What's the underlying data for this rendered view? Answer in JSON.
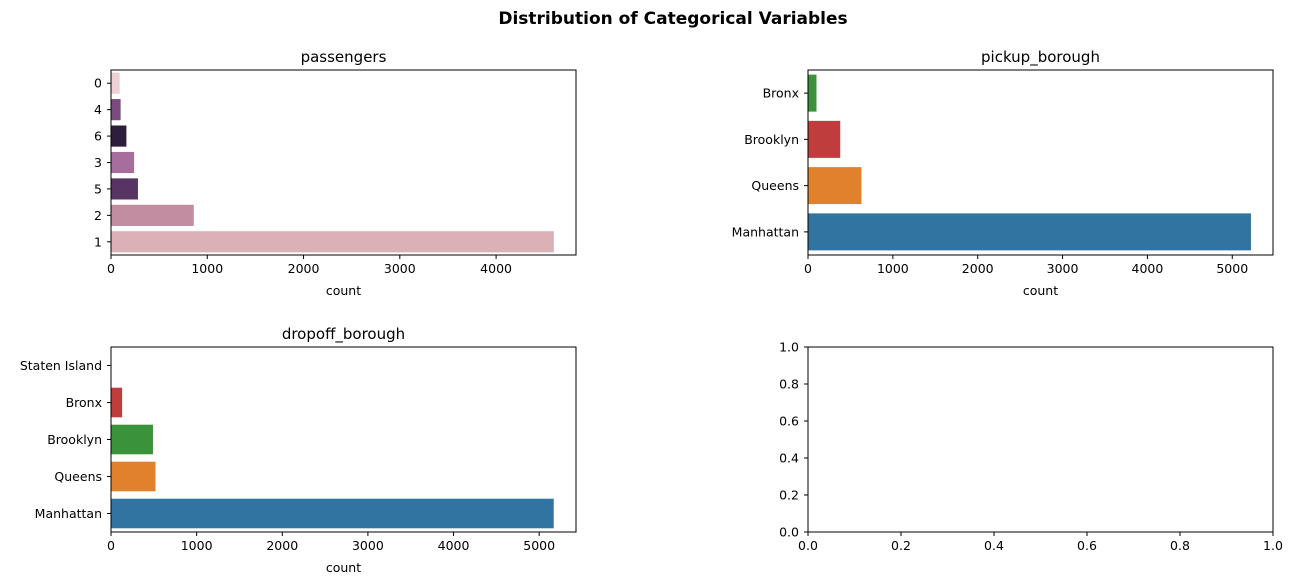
{
  "figure": {
    "title": "Distribution of Categorical Variables"
  },
  "chart_data": [
    {
      "type": "bar",
      "orientation": "horizontal",
      "title": "passengers",
      "xlabel": "count",
      "ylabel": "",
      "categories": [
        "0",
        "4",
        "6",
        "3",
        "5",
        "2",
        "1"
      ],
      "values": [
        90,
        100,
        160,
        240,
        280,
        860,
        4600
      ],
      "colors": [
        "#ecd0d3",
        "#7a4b7e",
        "#2e1e3b",
        "#a76e9d",
        "#563463",
        "#c28ca1",
        "#dbb0b6"
      ],
      "xlim": [
        0,
        4830
      ],
      "xticks": [
        0,
        1000,
        2000,
        3000,
        4000
      ],
      "grid": false
    },
    {
      "type": "bar",
      "orientation": "horizontal",
      "title": "pickup_borough",
      "xlabel": "count",
      "ylabel": "",
      "categories": [
        "Bronx",
        "Brooklyn",
        "Queens",
        "Manhattan"
      ],
      "values": [
        100,
        380,
        630,
        5220
      ],
      "colors": [
        "#3a923a",
        "#c03d3e",
        "#e1812c",
        "#3274a1"
      ],
      "xlim": [
        0,
        5480
      ],
      "xticks": [
        0,
        1000,
        2000,
        3000,
        4000,
        5000
      ],
      "grid": false
    },
    {
      "type": "bar",
      "orientation": "horizontal",
      "title": "dropoff_borough",
      "xlabel": "count",
      "ylabel": "",
      "categories": [
        "Staten Island",
        "Bronx",
        "Brooklyn",
        "Queens",
        "Manhattan"
      ],
      "values": [
        2,
        130,
        490,
        520,
        5170
      ],
      "colors": [
        "#3274a1",
        "#c03d3e",
        "#3a923a",
        "#e1812c",
        "#3274a1"
      ],
      "xlim": [
        0,
        5430
      ],
      "xticks": [
        0,
        1000,
        2000,
        3000,
        4000,
        5000
      ],
      "grid": false
    },
    {
      "type": "empty",
      "title": "",
      "xlabel": "",
      "ylabel": "",
      "xlim": [
        0,
        1
      ],
      "ylim": [
        0,
        1
      ],
      "xticks": [
        0.0,
        0.2,
        0.4,
        0.6,
        0.8,
        1.0
      ],
      "yticks": [
        0.0,
        0.2,
        0.4,
        0.6,
        0.8,
        1.0
      ],
      "tick_format": "0.0",
      "grid": false
    }
  ]
}
